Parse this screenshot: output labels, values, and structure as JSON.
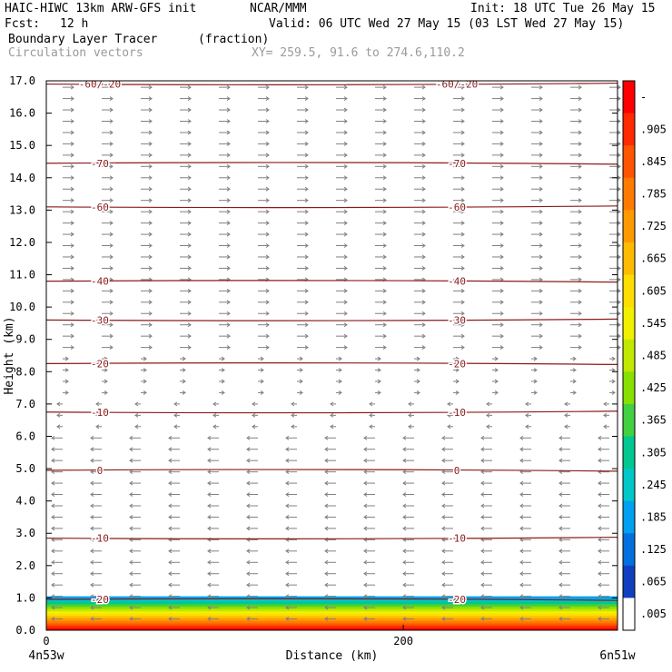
{
  "header": {
    "model_line": "HAIC-HIWC 13km ARW-GFS init",
    "org": "NCAR/MMM",
    "init_label": "Init: 18 UTC Tue 26 May 15",
    "fcst_label": "Fcst:",
    "fcst_value": "12 h",
    "valid_label": "Valid: 06 UTC Wed 27 May 15 (03 LST Wed 27 May 15)",
    "field_name": "Boundary Layer Tracer",
    "field_units": "(fraction)",
    "vectors_label": "Circulation vectors",
    "xy_label": "XY= 259.5, 91.6 to 274.6,110.2"
  },
  "chart_data": {
    "type": "heatmap",
    "ylabel": "Height (km)",
    "xlabel": "Distance (km)",
    "ylim": [
      0,
      17
    ],
    "xlim": [
      0,
      320
    ],
    "y_ticks": [
      "0.0",
      "1.0",
      "2.0",
      "3.0",
      "4.0",
      "5.0",
      "6.0",
      "7.0",
      "8.0",
      "9.0",
      "10.0",
      "11.0",
      "12.0",
      "13.0",
      "14.0",
      "15.0",
      "16.0",
      "17.0"
    ],
    "x_ticks": [
      {
        "value": 0,
        "label": "0"
      },
      {
        "value": 200,
        "label": "200"
      }
    ],
    "x_end_labels": {
      "left": "4n53w",
      "right": "6n51w"
    },
    "colorbar": {
      "labels": [
        "-",
        ".905",
        ".845",
        ".785",
        ".725",
        ".665",
        ".605",
        ".545",
        ".485",
        ".425",
        ".365",
        ".305",
        ".245",
        ".185",
        ".125",
        ".065",
        ".005"
      ],
      "colors": [
        "#ff0000",
        "#ff2a00",
        "#ff5500",
        "#ff7a00",
        "#ff9900",
        "#ffbb00",
        "#ffdd00",
        "#f0f000",
        "#c0e800",
        "#88e000",
        "#40d040",
        "#00c890",
        "#00c8c8",
        "#00a0f0",
        "#0070e0",
        "#1040c0",
        "#ffffff"
      ]
    },
    "temperature_contours": [
      {
        "label": "-20",
        "height_km": 0.95
      },
      {
        "label": "-10",
        "height_km": 2.85
      },
      {
        "label": "0",
        "height_km": 4.95
      },
      {
        "label": "-10",
        "height_km": 6.75
      },
      {
        "label": "-20",
        "height_km": 8.25
      },
      {
        "label": "-30",
        "height_km": 9.6
      },
      {
        "label": "-40",
        "height_km": 10.8
      },
      {
        "label": "-60",
        "height_km": 13.1
      },
      {
        "label": "-70",
        "height_km": 14.45
      },
      {
        "label": "-60/-20",
        "height_km": 16.9
      }
    ],
    "tracer_top_km": 1.05,
    "wind_regimes": [
      {
        "from_km": 0.0,
        "to_km": 1.0,
        "direction": "west"
      },
      {
        "from_km": 1.0,
        "to_km": 7.3,
        "direction": "west"
      },
      {
        "from_km": 7.3,
        "to_km": 17.0,
        "direction": "east"
      }
    ]
  }
}
